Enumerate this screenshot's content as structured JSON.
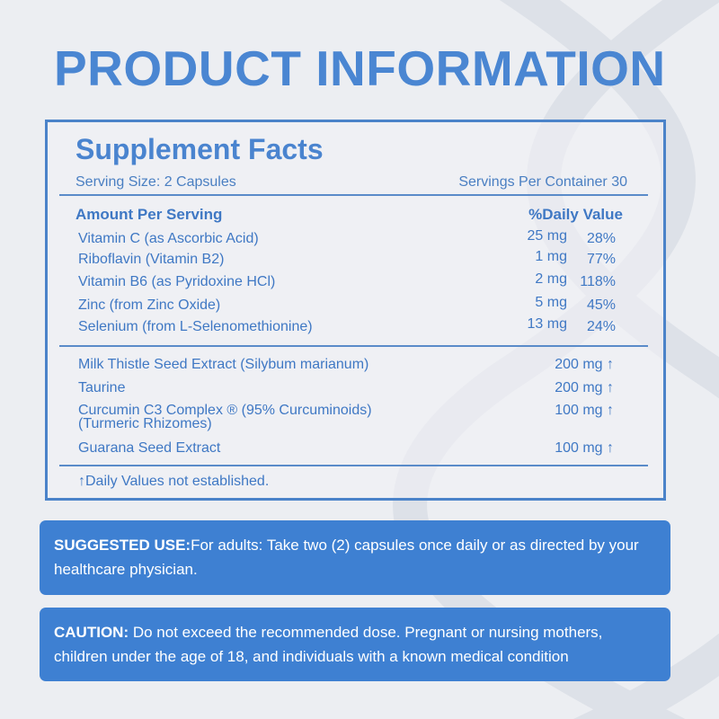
{
  "title": "PRODUCT INFORMATION",
  "facts": {
    "heading": "Supplement Facts",
    "serving_size": "Serving Size: 2 Capsules",
    "servings_per_container": "Servings Per Container 30",
    "amount_header": "Amount Per Serving",
    "dv_header": "%Daily Value",
    "vitamins": [
      {
        "name": "Vitamin C  (as Ascorbic Acid)",
        "amount": "25 mg",
        "dv": "28%"
      },
      {
        "name": "Riboflavin  (Vitamin B2)",
        "amount": "1 mg",
        "dv": "77%"
      },
      {
        "name": "Vitamin B6  (as Pyridoxine HCl)",
        "amount": "2 mg",
        "dv": "118%"
      },
      {
        "name": "Zinc  (from Zinc Oxide)",
        "amount": "5 mg",
        "dv": "45%"
      },
      {
        "name": "Selenium  (from L-Selenomethionine)",
        "amount": "13 mg",
        "dv": "24%"
      }
    ],
    "others": [
      {
        "name": "Milk Thistle Seed Extract  (Silybum marianum)",
        "amount": "200 mg ↑"
      },
      {
        "name": "Taurine",
        "amount": "200 mg ↑"
      },
      {
        "name": "Curcumin C3 Complex ® (95% Curcuminoids)",
        "name2": "(Turmeric Rhizomes)",
        "amount": "100 mg ↑"
      },
      {
        "name": "Guarana Seed Extract",
        "amount": "100 mg ↑"
      }
    ],
    "footnote": "↑Daily Values not established."
  },
  "suggested": {
    "label": "SUGGESTED USE:",
    "text": "For adults: Take two (2) capsules once daily or as directed by your healthcare physician."
  },
  "caution": {
    "label": "CAUTION:",
    "text": " Do not exceed the recommended dose. Pregnant or nursing mothers, children under the age of 18, and individuals with a known medical condition"
  },
  "colors": {
    "accent": "#4a86d2",
    "box": "#3e80d2",
    "background": "#eceef2"
  }
}
